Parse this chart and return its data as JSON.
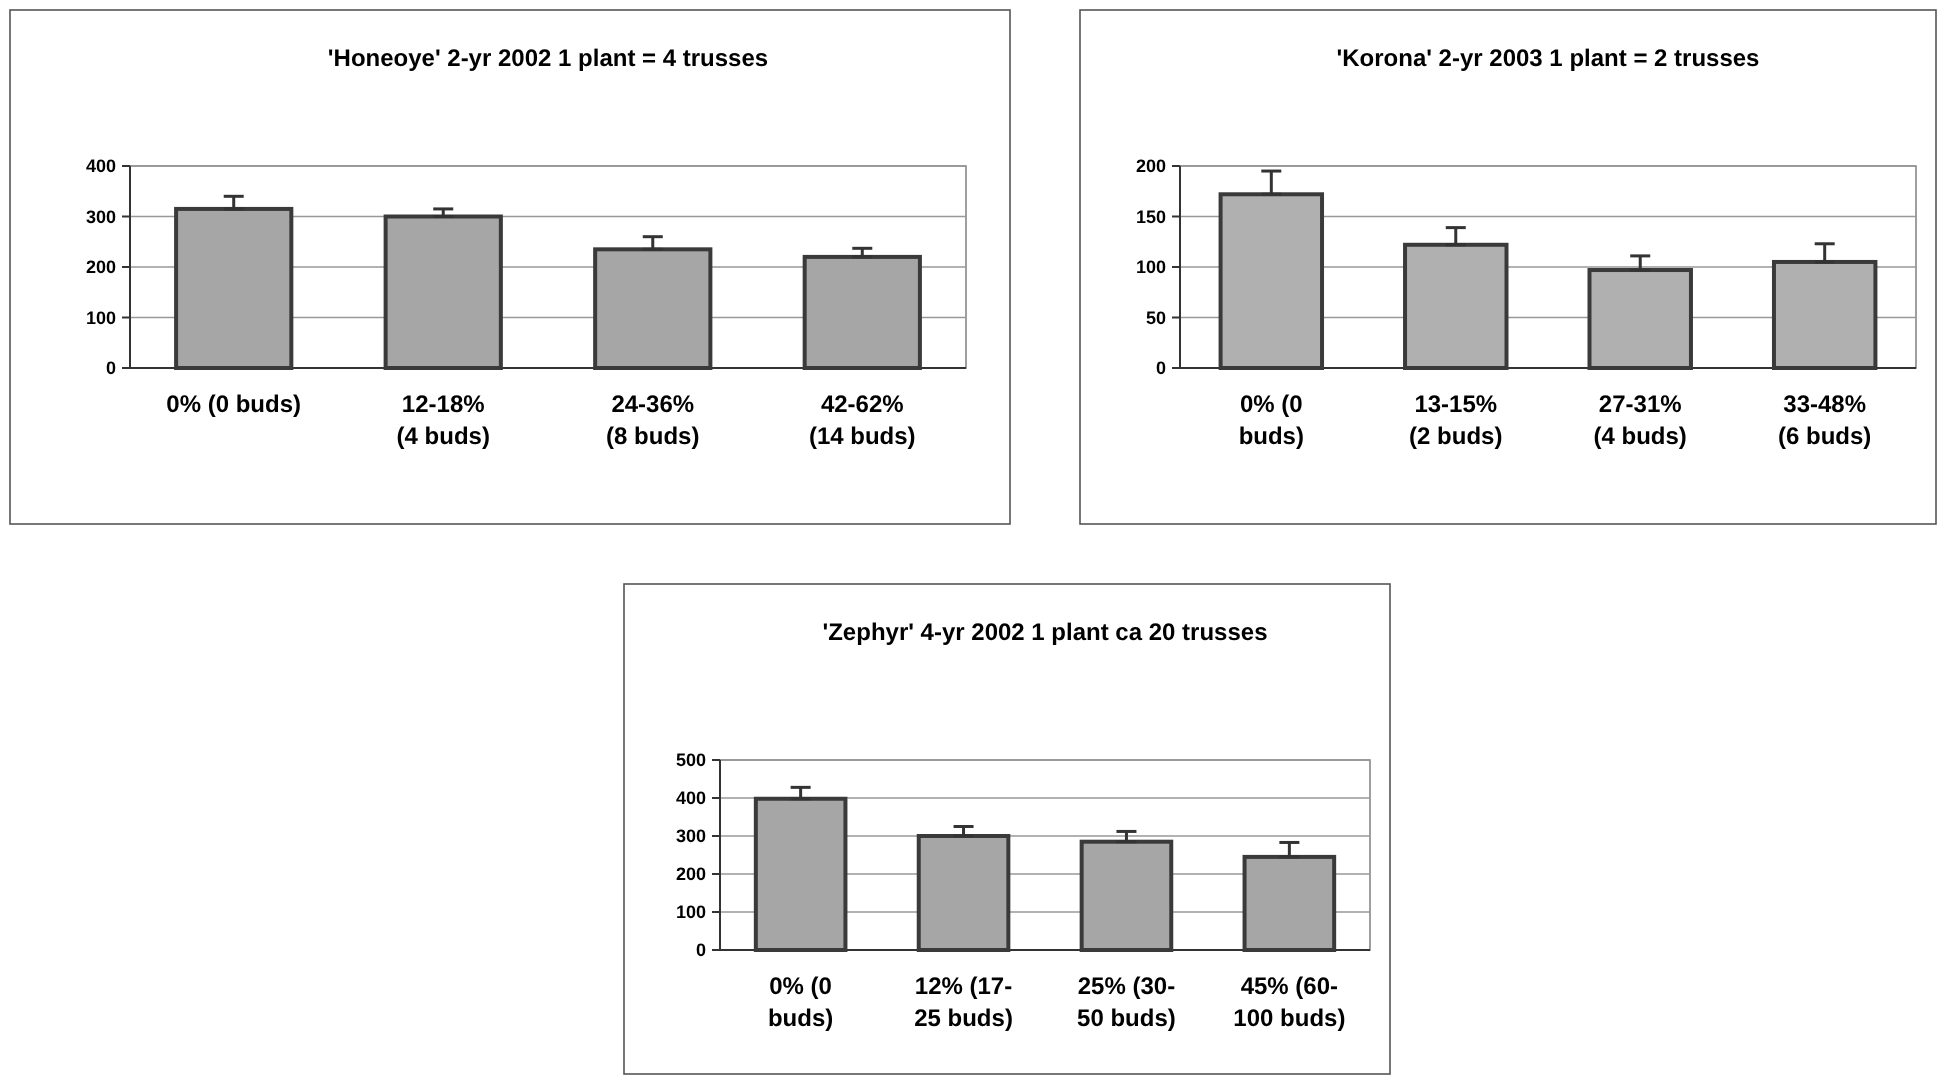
{
  "chart_data": [
    {
      "type": "bar",
      "title": "'Honeoye' 2-yr 2002   1 plant = 4 trusses",
      "categories": [
        "0%  (0 buds)",
        "12-18%\n(4 buds)",
        "24-36%\n(8 buds)",
        "42-62%\n(14 buds)"
      ],
      "values": [
        315,
        300,
        235,
        220
      ],
      "errors": [
        [
          315,
          340
        ],
        [
          300,
          315
        ],
        [
          235,
          260
        ],
        [
          220,
          237
        ]
      ],
      "color": "#a6a6a6",
      "ylim": [
        0,
        400
      ],
      "yticks": [
        0,
        100,
        200,
        300,
        400
      ],
      "grid": "y"
    },
    {
      "type": "bar",
      "title": "'Korona' 2-yr 2003   1 plant = 2 trusses",
      "categories": [
        "0%  (0\nbuds)",
        "13-15%\n(2 buds)",
        "27-31%\n(4 buds)",
        "33-48%\n(6 buds)"
      ],
      "values": [
        172,
        122,
        97,
        105
      ],
      "errors": [
        [
          172,
          195
        ],
        [
          122,
          139
        ],
        [
          97,
          111
        ],
        [
          105,
          123
        ]
      ],
      "color": "#b0b0b0",
      "ylim": [
        0,
        200
      ],
      "yticks": [
        0,
        50,
        100,
        150,
        200
      ],
      "grid": "y"
    },
    {
      "type": "bar",
      "title": "'Zephyr' 4-yr 2002  1 plant ca  20 trusses",
      "categories": [
        "0% (0\nbuds)",
        "12% (17-\n25 buds)",
        "25% (30-\n50 buds)",
        "45% (60-\n100 buds)"
      ],
      "values": [
        398,
        300,
        285,
        245
      ],
      "errors": [
        [
          398,
          428
        ],
        [
          300,
          325
        ],
        [
          285,
          312
        ],
        [
          245,
          283
        ]
      ],
      "color": "#a6a6a6",
      "ylim": [
        0,
        500
      ],
      "yticks": [
        0,
        100,
        200,
        300,
        400,
        500
      ],
      "grid": "y"
    }
  ]
}
